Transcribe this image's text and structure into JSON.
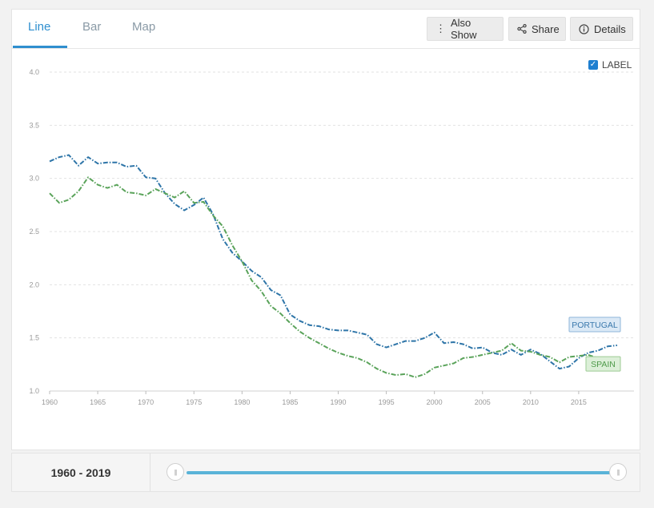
{
  "tabs": [
    {
      "label": "Line",
      "active": true
    },
    {
      "label": "Bar",
      "active": false
    },
    {
      "label": "Map",
      "active": false
    }
  ],
  "toolbar": {
    "also_show": "Also Show",
    "share": "Share",
    "details": "Details",
    "also_show_icon": "vertical-dots-icon",
    "share_icon": "share-icon",
    "details_icon": "info-icon"
  },
  "label_toggle": {
    "text": "LABEL",
    "checked": true
  },
  "footer": {
    "range": "1960 - 2019",
    "slider_start_year": 1960,
    "slider_end_year": 2019
  },
  "colors": {
    "accent": "#2f8fcf",
    "portugal": "#2e75a8",
    "spain": "#5aa35a",
    "slider": "#5ab3d8"
  },
  "chart_data": {
    "type": "line",
    "title": "",
    "xlabel": "",
    "ylabel": "",
    "xlim": [
      1960,
      2019
    ],
    "ylim": [
      1.0,
      4.0
    ],
    "yticks": [
      "1.0",
      "1.5",
      "2.0",
      "2.5",
      "3.0",
      "3.5",
      "4.0"
    ],
    "xticks": [
      "1960",
      "1965",
      "1970",
      "1975",
      "1980",
      "1985",
      "1990",
      "1995",
      "2000",
      "2005",
      "2010",
      "2015"
    ],
    "grid": true,
    "line_style": "dash-dot",
    "x": [
      1960,
      1961,
      1962,
      1963,
      1964,
      1965,
      1966,
      1967,
      1968,
      1969,
      1970,
      1971,
      1972,
      1973,
      1974,
      1975,
      1976,
      1977,
      1978,
      1979,
      1980,
      1981,
      1982,
      1983,
      1984,
      1985,
      1986,
      1987,
      1988,
      1989,
      1990,
      1991,
      1992,
      1993,
      1994,
      1995,
      1996,
      1997,
      1998,
      1999,
      2000,
      2001,
      2002,
      2003,
      2004,
      2005,
      2006,
      2007,
      2008,
      2009,
      2010,
      2011,
      2012,
      2013,
      2014,
      2015,
      2016,
      2017,
      2018,
      2019
    ],
    "series": [
      {
        "name": "PORTUGAL",
        "color": "#2e75a8",
        "values": [
          3.16,
          3.2,
          3.22,
          3.12,
          3.2,
          3.14,
          3.15,
          3.15,
          3.11,
          3.12,
          3.01,
          3.0,
          2.86,
          2.76,
          2.7,
          2.75,
          2.82,
          2.66,
          2.43,
          2.3,
          2.22,
          2.13,
          2.07,
          1.95,
          1.9,
          1.72,
          1.66,
          1.62,
          1.61,
          1.58,
          1.57,
          1.57,
          1.55,
          1.53,
          1.44,
          1.41,
          1.44,
          1.47,
          1.47,
          1.5,
          1.55,
          1.45,
          1.46,
          1.44,
          1.4,
          1.41,
          1.36,
          1.34,
          1.39,
          1.34,
          1.39,
          1.35,
          1.28,
          1.21,
          1.23,
          1.31,
          1.36,
          1.38,
          1.42,
          1.43
        ]
      },
      {
        "name": "SPAIN",
        "color": "#5aa35a",
        "values": [
          2.86,
          2.77,
          2.8,
          2.88,
          3.01,
          2.94,
          2.91,
          2.94,
          2.87,
          2.86,
          2.84,
          2.9,
          2.86,
          2.82,
          2.88,
          2.77,
          2.78,
          2.65,
          2.55,
          2.37,
          2.22,
          2.04,
          1.94,
          1.8,
          1.73,
          1.64,
          1.56,
          1.5,
          1.45,
          1.4,
          1.36,
          1.33,
          1.31,
          1.27,
          1.21,
          1.17,
          1.15,
          1.16,
          1.13,
          1.16,
          1.22,
          1.24,
          1.26,
          1.31,
          1.32,
          1.34,
          1.36,
          1.38,
          1.45,
          1.38,
          1.37,
          1.34,
          1.32,
          1.27,
          1.32,
          1.33,
          1.34,
          1.31,
          1.26,
          1.24
        ]
      }
    ],
    "end_labels": [
      "PORTUGAL",
      "SPAIN"
    ]
  }
}
